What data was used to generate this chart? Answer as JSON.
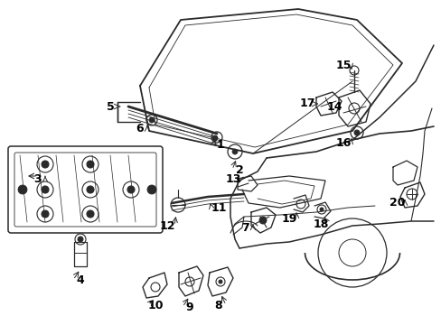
{
  "bg_color": "#ffffff",
  "line_color": "#2a2a2a",
  "label_color": "#000000",
  "label_fontsize": 9,
  "figsize": [
    4.89,
    3.6
  ],
  "dpi": 100,
  "xlim": [
    0,
    489
  ],
  "ylim": [
    0,
    360
  ]
}
